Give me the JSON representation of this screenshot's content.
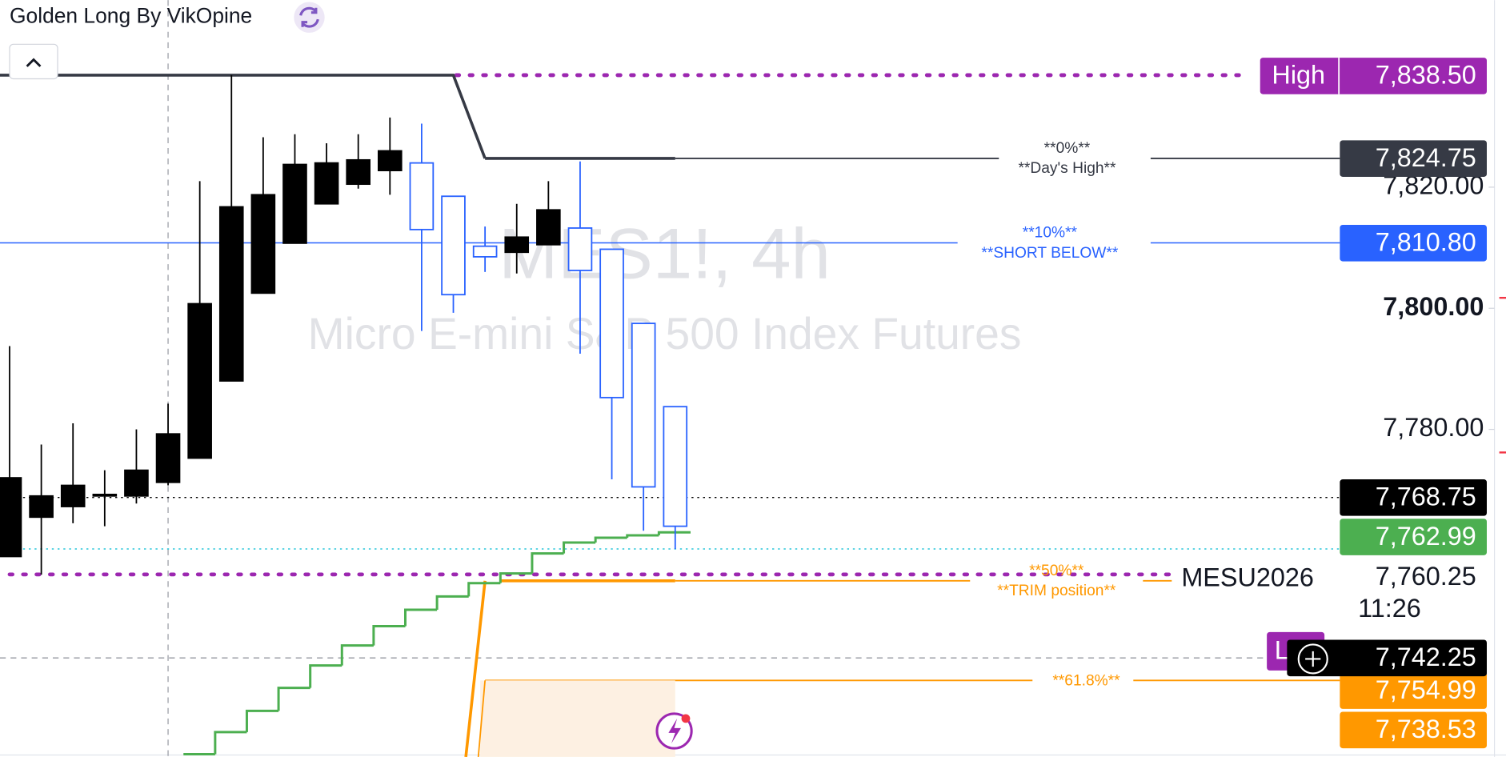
{
  "header": {
    "title": "Golden Long By VikOpine"
  },
  "chart_data": {
    "type": "candlestick",
    "symbol": "MES1!, 4h",
    "description": "Micro E-mini S&P 500 Index Futures",
    "ylim": [
      7725.9,
      7850.9
    ],
    "yticks": [
      {
        "value": 7780,
        "label": "7,780.00"
      },
      {
        "value": 7800,
        "label": "7,800.00"
      },
      {
        "value": 7820,
        "label": "7,820.00"
      }
    ],
    "open": [
      7759.0,
      7765.5,
      7767.25,
      7769.0,
      7769.0,
      7771.25,
      7775.25,
      7788.0,
      7802.5,
      7810.75,
      7817.25,
      7820.5,
      7822.75,
      7824.0,
      7818.5,
      7810.25,
      7809.25,
      7810.5,
      7813.25,
      7809.75,
      7797.5,
      7783.75
    ],
    "high": [
      7793.75,
      7777.5,
      7781.0,
      7773.25,
      7780.0,
      7784.25,
      7821.0,
      7838.5,
      7828.25,
      7828.75,
      7827.25,
      7828.75,
      7831.5,
      7830.5,
      7818.5,
      7813.5,
      7817.25,
      7821.0,
      7824.25,
      7809.75,
      7797.5,
      7783.75
    ],
    "low": [
      7759.0,
      7756.0,
      7764.5,
      7764.0,
      7767.75,
      7770.75,
      7775.25,
      7788.0,
      7802.5,
      7810.75,
      7817.25,
      7819.75,
      7818.75,
      7796.25,
      7799.25,
      7806.0,
      7805.75,
      7810.5,
      7792.5,
      7771.75,
      7763.25,
      7760.25
    ],
    "close": [
      7772.0,
      7769.0,
      7770.75,
      7769.25,
      7773.25,
      7779.25,
      7800.75,
      7816.75,
      7818.75,
      7823.75,
      7824.0,
      7824.5,
      7826.0,
      7813.0,
      7802.25,
      7808.5,
      7811.75,
      7816.25,
      7806.25,
      7785.25,
      7770.5,
      7764.0
    ],
    "up_color": "#000000",
    "down_color": "#2962ff",
    "trail": {
      "color": "#4caf50",
      "values": [
        null,
        null,
        null,
        null,
        null,
        null,
        7726.35,
        7730.0,
        7733.5,
        7737.3,
        7741.0,
        7744.3,
        7747.5,
        7750.2,
        7752.4,
        7754.6,
        7756.2,
        7759.5,
        7761.3,
        7762.1,
        7762.5,
        7762.99
      ]
    },
    "low_tag": "L",
    "levels": [
      {
        "tag": "High",
        "value": 7838.5,
        "label": "7,838.50",
        "color": "#9c27b0"
      },
      {
        "value": 7824.75,
        "label": "7,824.75",
        "color": "#363a45",
        "notes": [
          "**0%**",
          "**Day's High**"
        ]
      },
      {
        "value": 7810.8,
        "label": "7,810.80",
        "color": "#2962ff",
        "notes": [
          "**10%**",
          "**SHORT BELOW**"
        ]
      },
      {
        "value": 7768.75,
        "label": "7,768.75",
        "color": "#000000"
      },
      {
        "value": 7762.99,
        "label": "7,762.99",
        "color": "#4caf50"
      },
      {
        "tag": "MESU2026",
        "value": 7760.25,
        "label": "7,760.25",
        "countdown": "11:26",
        "color": "#131722"
      },
      {
        "value": 7742.25,
        "label": "7,742.25",
        "color": "#000000"
      },
      {
        "value": 7754.99,
        "label": "7,754.99",
        "color": "#ff9800",
        "notes": [
          "**50%**",
          "**TRIM position**"
        ]
      },
      {
        "value": 7738.53,
        "label": "7,738.53",
        "color": "#ff9800",
        "notes": [
          "**61.8%**"
        ]
      }
    ]
  }
}
